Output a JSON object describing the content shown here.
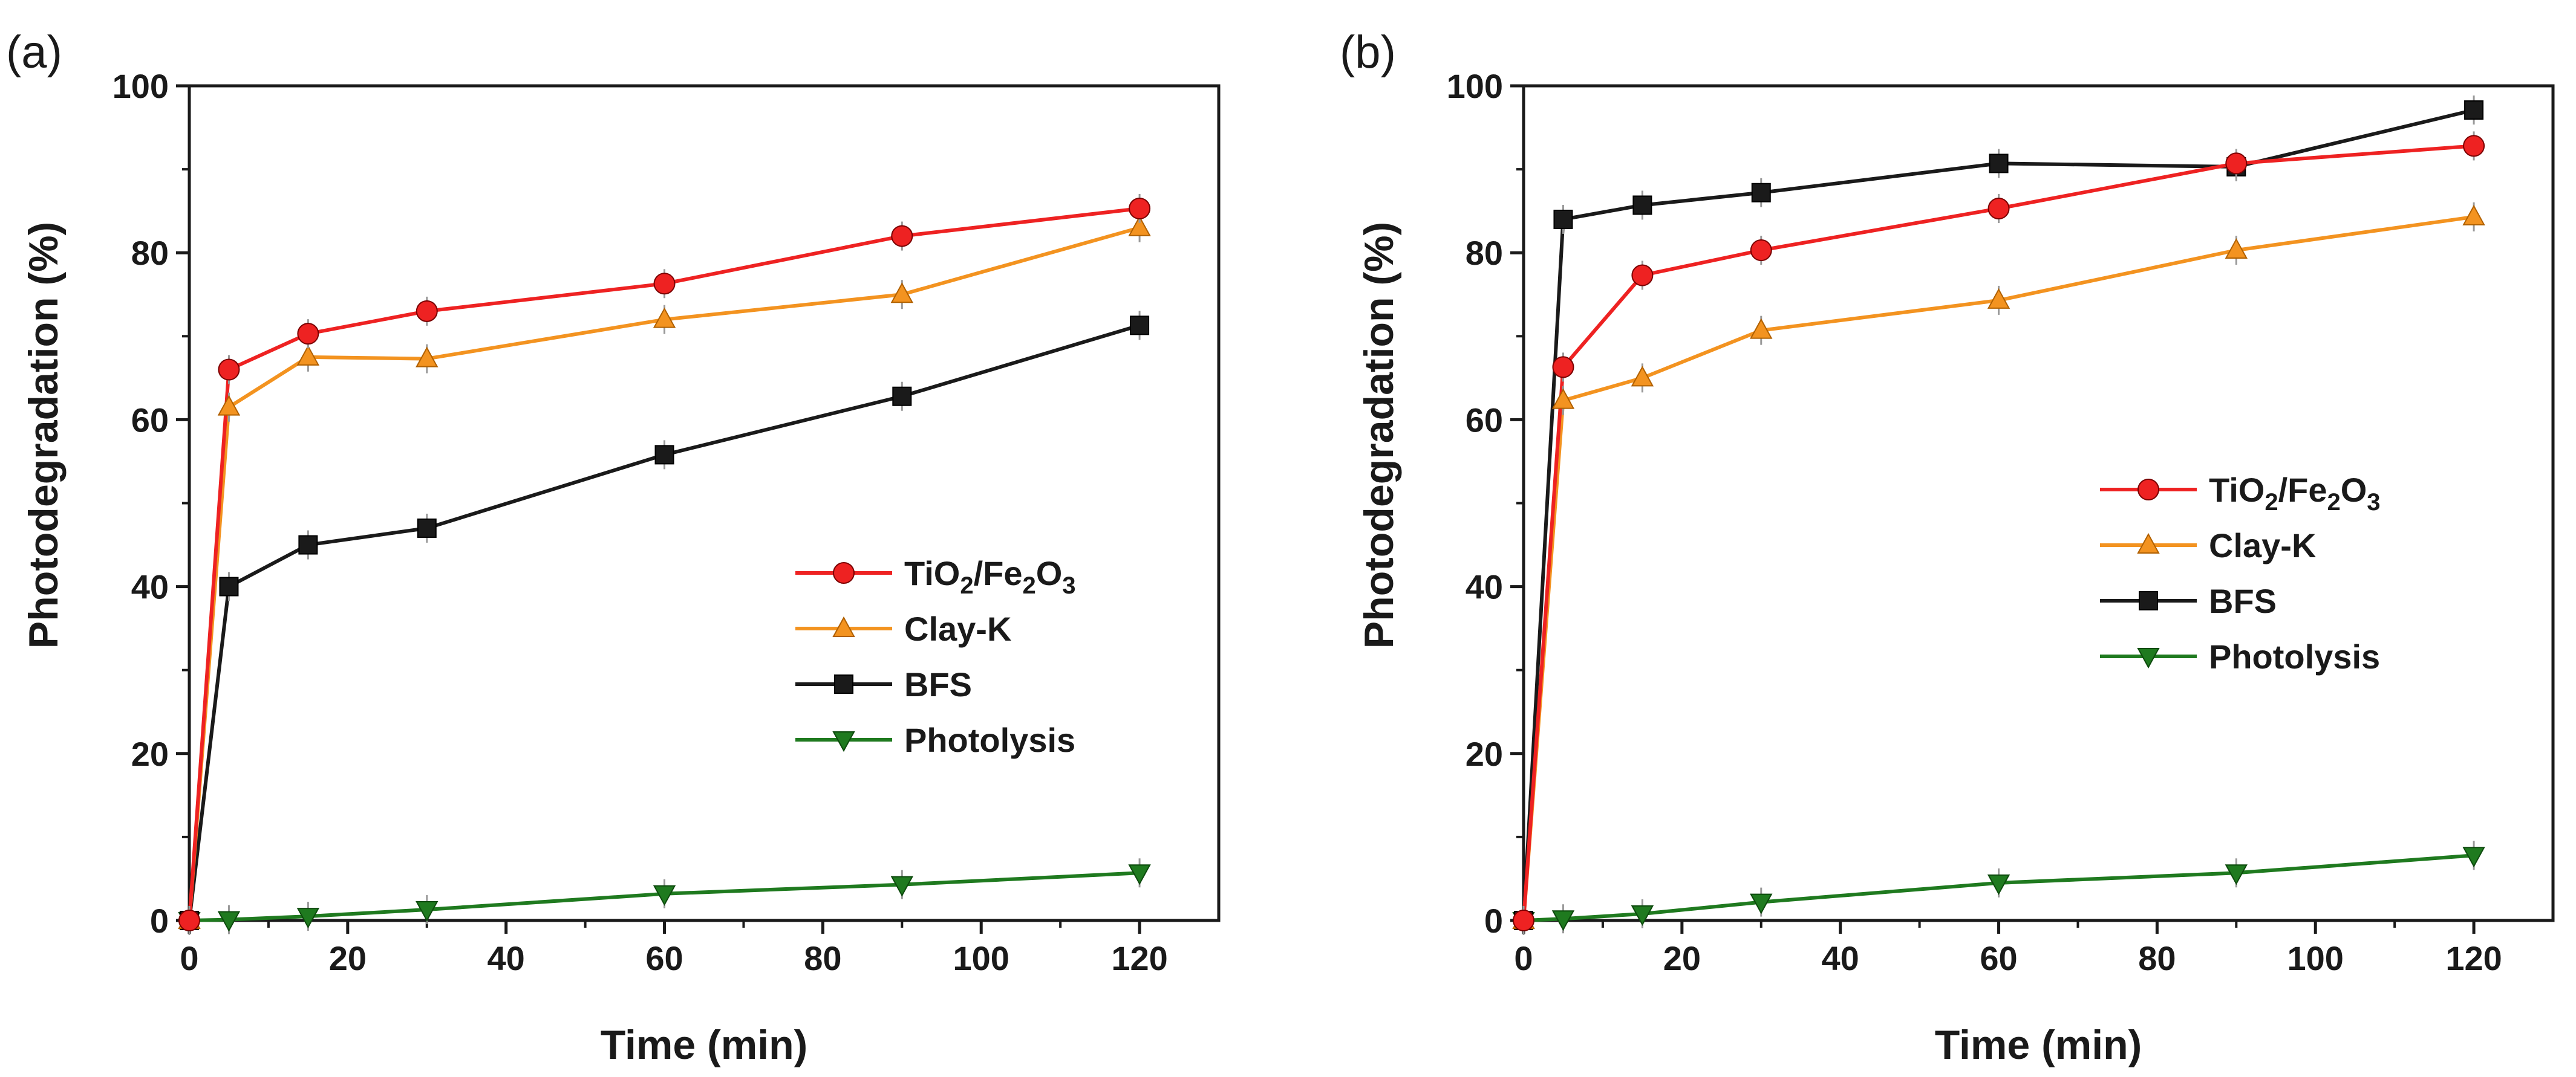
{
  "chart_data": [
    {
      "type": "line",
      "panel_label": "(a)",
      "xlabel": "Time (min)",
      "ylabel": "Photodegradation (%)",
      "xlim": [
        0,
        130
      ],
      "ylim": [
        0,
        100
      ],
      "xticks": [
        "0",
        "20",
        "40",
        "60",
        "80",
        "100",
        "120"
      ],
      "yticks": [
        "0",
        "20",
        "40",
        "60",
        "80",
        "100"
      ],
      "legend_position": "center-right",
      "series": [
        {
          "name": "TiO2/Fe2O3",
          "label_main": "TiO",
          "label_sub1": "2",
          "label_mid": "/Fe",
          "label_sub2": "2",
          "label_end": "O",
          "label_sub3": "3",
          "color": "#ee2222",
          "marker": "circle",
          "x": [
            0,
            5,
            15,
            30,
            60,
            90,
            120
          ],
          "values": [
            0,
            66,
            70.3,
            73,
            76.3,
            82,
            85.3
          ]
        },
        {
          "name": "Clay-K",
          "color": "#f39320",
          "marker": "triangle-up",
          "x": [
            0,
            5,
            15,
            30,
            60,
            90,
            120
          ],
          "values": [
            0,
            61.5,
            67.5,
            67.3,
            72,
            75,
            83
          ]
        },
        {
          "name": "BFS",
          "color": "#1a1a1a",
          "marker": "square",
          "x": [
            0,
            5,
            15,
            30,
            60,
            90,
            120
          ],
          "values": [
            0,
            40,
            45,
            47,
            55.8,
            62.8,
            71.3
          ]
        },
        {
          "name": "Photolysis",
          "color": "#1f7a1f",
          "marker": "triangle-down",
          "x": [
            0,
            5,
            15,
            30,
            60,
            90,
            120
          ],
          "values": [
            0,
            0.1,
            0.5,
            1.3,
            3.2,
            4.3,
            5.7
          ]
        }
      ]
    },
    {
      "type": "line",
      "panel_label": "(b)",
      "xlabel": "Time (min)",
      "ylabel": "Photodegradation (%)",
      "xlim": [
        0,
        130
      ],
      "ylim": [
        0,
        100
      ],
      "xticks": [
        "0",
        "20",
        "40",
        "60",
        "80",
        "100",
        "120"
      ],
      "yticks": [
        "0",
        "20",
        "40",
        "60",
        "80",
        "100"
      ],
      "legend_position": "center-right",
      "series": [
        {
          "name": "TiO2/Fe2O3",
          "label_main": "TiO",
          "label_sub1": "2",
          "label_mid": "/Fe",
          "label_sub2": "2",
          "label_end": "O",
          "label_sub3": "3",
          "color": "#ee2222",
          "marker": "circle",
          "x": [
            0,
            5,
            15,
            30,
            60,
            90,
            120
          ],
          "values": [
            0,
            66.3,
            77.3,
            80.3,
            85.3,
            90.7,
            92.8
          ]
        },
        {
          "name": "Clay-K",
          "color": "#f39320",
          "marker": "triangle-up",
          "x": [
            0,
            5,
            15,
            30,
            60,
            90,
            120
          ],
          "values": [
            0,
            62.3,
            65,
            70.7,
            74.3,
            80.3,
            84.3
          ]
        },
        {
          "name": "BFS",
          "color": "#1a1a1a",
          "marker": "square",
          "x": [
            0,
            5,
            15,
            30,
            60,
            90,
            120
          ],
          "values": [
            0,
            84,
            85.7,
            87.2,
            90.7,
            90.3,
            97.1
          ]
        },
        {
          "name": "Photolysis",
          "color": "#1f7a1f",
          "marker": "triangle-down",
          "x": [
            0,
            5,
            15,
            30,
            60,
            90,
            120
          ],
          "values": [
            0,
            0.2,
            0.8,
            2.2,
            4.5,
            5.7,
            7.8
          ]
        }
      ]
    }
  ]
}
